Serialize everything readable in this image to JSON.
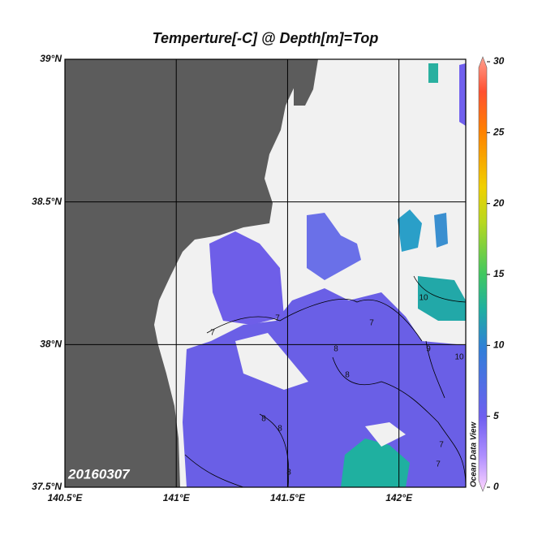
{
  "title": "Temperture[-C] @ Depth[m]=Top",
  "lonlim": [
    140.5,
    142.3
  ],
  "latlim": [
    37.5,
    39
  ],
  "lon_ticks": [
    {
      "value": 140.5,
      "label": "140.5°E"
    },
    {
      "value": 141,
      "label": "141°E"
    },
    {
      "value": 141.5,
      "label": "141.5°E"
    },
    {
      "value": 142,
      "label": "142°E"
    }
  ],
  "lat_ticks": [
    {
      "value": 37.5,
      "label": "37.5°N"
    },
    {
      "value": 38,
      "label": "38°N"
    },
    {
      "value": 38.5,
      "label": "38.5°N"
    },
    {
      "value": 39,
      "label": "39°N"
    }
  ],
  "colorbar": {
    "range": [
      0,
      30
    ],
    "ticks": [
      0,
      5,
      10,
      15,
      20,
      25,
      30
    ]
  },
  "date_label": "20160307",
  "watermark": "Ocean Data View",
  "contour_labels": [
    "7",
    "7",
    "7",
    "8",
    "8",
    "10",
    "9",
    "10",
    "7",
    "8",
    "8",
    "7",
    "8"
  ]
}
